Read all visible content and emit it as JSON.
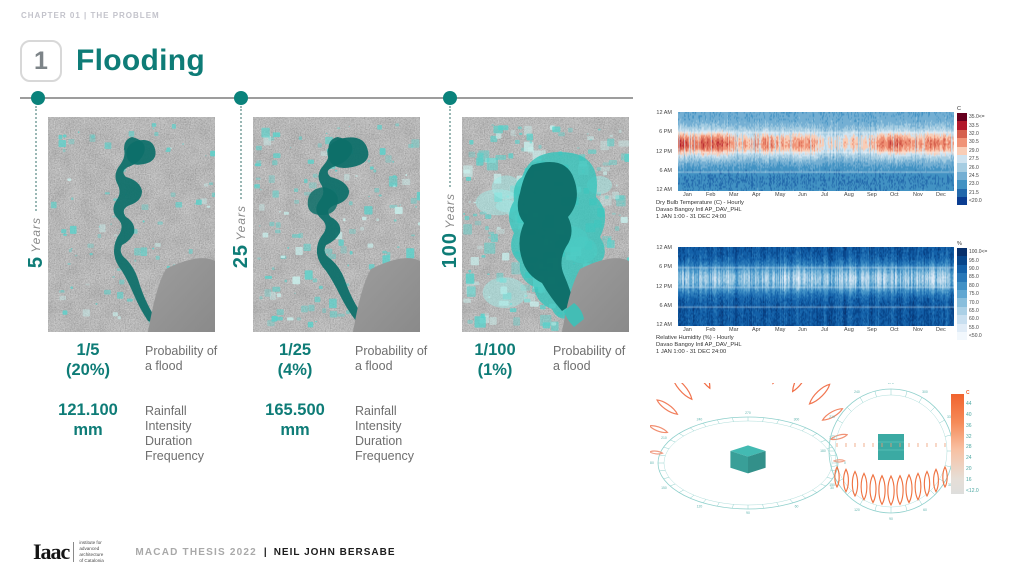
{
  "colors": {
    "accent": "#0e7c77",
    "flood_dark": "#0d6f69",
    "flood_cyan": "#54d3cc",
    "dot": "#0a827b",
    "orange": "#f1632e"
  },
  "header": {
    "chapter": "CHAPTER 01 | THE PROBLEM",
    "number": "1",
    "title": "Flooding"
  },
  "scenarios": [
    {
      "years": "5",
      "years_unit": "Years",
      "probability": "1/5\n(20%)",
      "probability_label": "Probability of\na flood",
      "rainfall": "121.100\nmm",
      "rainfall_label": "Rainfall\nIntensity\nDuration\nFrequency"
    },
    {
      "years": "25",
      "years_unit": "Years",
      "probability": "1/25\n(4%)",
      "probability_label": "Probability of\na flood",
      "rainfall": "165.500\nmm",
      "rainfall_label": "Rainfall\nIntensity\nDuration\nFrequency"
    },
    {
      "years": "100",
      "years_unit": "Years",
      "probability": "1/100\n(1%)",
      "probability_label": "Probability of\na flood"
    }
  ],
  "footer": {
    "logo": "Iaac",
    "logo_sub": "institute for\nadvanced\narchitecture\nof Catalonia",
    "thesis": "MACAD THESIS 2022",
    "separator": "|",
    "author": "NEIL JOHN BERSABE"
  },
  "chart_data": [
    {
      "type": "heatmap",
      "title": "Dry Bulb Temperature (C) - Hourly",
      "station": "Davao Bangoy Intl AP_DAV_PHL",
      "period": "1 JAN 1:00 - 31 DEC 24:00",
      "x_ticks": [
        "Jan",
        "Feb",
        "Mar",
        "Apr",
        "May",
        "Jun",
        "Jul",
        "Aug",
        "Sep",
        "Oct",
        "Nov",
        "Dec"
      ],
      "y_ticks": [
        "12 AM",
        "6 PM",
        "12 PM",
        "6 AM",
        "12 AM"
      ],
      "legend_unit": "C",
      "legend_values": [
        "35.0<=",
        "33.5",
        "32.0",
        "30.5",
        "29.0",
        "27.5",
        "26.0",
        "24.5",
        "23.0",
        "21.5",
        "<20.0"
      ],
      "palette": [
        "#67001f",
        "#b2182b",
        "#d6604d",
        "#f09377",
        "#f9cdb6",
        "#cfe3f0",
        "#a6cde2",
        "#74afd3",
        "#4292c3",
        "#2268ab",
        "#0b3d91"
      ],
      "value_range": [
        20,
        35
      ],
      "x_range": "1 Jan - 31 Dec (hour of day vs day of year)"
    },
    {
      "type": "heatmap",
      "title": "Relative Humidity (%) - Hourly",
      "station": "Davao Bangoy Intl AP_DAV_PHL",
      "period": "1 JAN 1:00 - 31 DEC 24:00",
      "x_ticks": [
        "Jan",
        "Feb",
        "Mar",
        "Apr",
        "May",
        "Jun",
        "Jul",
        "Aug",
        "Sep",
        "Oct",
        "Nov",
        "Dec"
      ],
      "y_ticks": [
        "12 AM",
        "6 PM",
        "12 PM",
        "6 AM",
        "12 AM"
      ],
      "legend_unit": "%",
      "legend_values": [
        "100.0<=",
        "95.0",
        "90.0",
        "85.0",
        "80.0",
        "75.0",
        "70.0",
        "65.0",
        "60.0",
        "55.0",
        "<50.0"
      ],
      "palette": [
        "#08306b",
        "#08468b",
        "#1360a8",
        "#2878b8",
        "#4191c6",
        "#61a7d2",
        "#89bedc",
        "#abd0e6",
        "#c8dff0",
        "#e0ecf7",
        "#f2f8fd"
      ],
      "value_range": [
        50,
        100
      ],
      "x_range": "1 Jan - 31 Dec (hour of day vs day of year)"
    },
    {
      "type": "sunpath",
      "views": [
        "perspective",
        "top"
      ],
      "legend_unit": "C",
      "legend_values": [
        "44",
        "40",
        "36",
        "32",
        "28",
        "24",
        "20",
        "16",
        "<12.0"
      ]
    }
  ]
}
